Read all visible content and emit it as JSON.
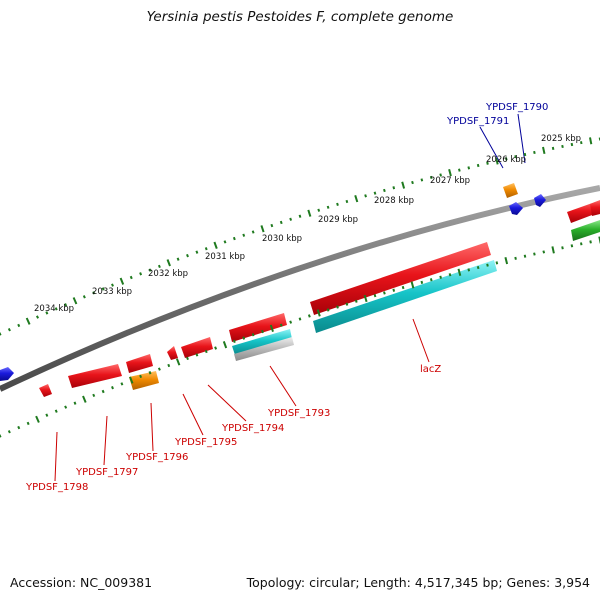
{
  "title": "Yersinia pestis Pestoides F, complete genome",
  "footer": {
    "accession": "Accession: NC_009381",
    "summary": "Topology: circular; Length: 4,517,345 bp; Genes: 3,954"
  },
  "colors": {
    "backbone": "#7a7a7a",
    "tick": "#1f7a1f",
    "gene_red": "#e8141a",
    "gene_cyan": "#16c4c8",
    "gene_orange": "#f08a00",
    "gene_blue": "#1a1adc",
    "gene_green": "#2ab02a",
    "gene_gray": "#bdbdbd",
    "label_red": "#cc0000",
    "label_blue": "#000099"
  },
  "ticks": [
    {
      "label": "2025 kbp"
    },
    {
      "label": "2026 kbp"
    },
    {
      "label": "2027 kbp"
    },
    {
      "label": "2028 kbp"
    },
    {
      "label": "2029 kbp"
    },
    {
      "label": "2030 kbp"
    },
    {
      "label": "2031 kbp"
    },
    {
      "label": "2032 kbp"
    },
    {
      "label": "2033 kbp"
    },
    {
      "label": "2034 kbp"
    }
  ],
  "gene_labels": [
    {
      "text": "YPDSF_1790",
      "color": "label_blue"
    },
    {
      "text": "YPDSF_1791",
      "color": "label_blue"
    },
    {
      "text": "lacZ",
      "color": "label_red"
    },
    {
      "text": "YPDSF_1793",
      "color": "label_red"
    },
    {
      "text": "YPDSF_1794",
      "color": "label_red"
    },
    {
      "text": "YPDSF_1795",
      "color": "label_red"
    },
    {
      "text": "YPDSF_1796",
      "color": "label_red"
    },
    {
      "text": "YPDSF_1797",
      "color": "label_red"
    },
    {
      "text": "YPDSF_1798",
      "color": "label_red"
    }
  ]
}
